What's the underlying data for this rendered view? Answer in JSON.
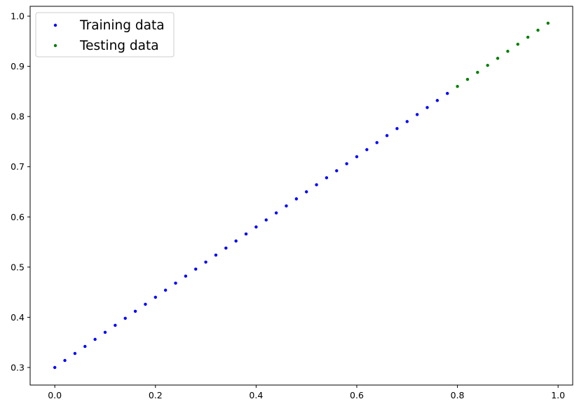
{
  "chart_data": {
    "type": "scatter",
    "title": "",
    "xlabel": "",
    "ylabel": "",
    "xlim": [
      -0.049,
      1.029
    ],
    "ylim": [
      0.265,
      1.0196
    ],
    "grid": false,
    "legend_position": "top-left",
    "xticks": [
      "0.0",
      "0.2",
      "0.4",
      "0.6",
      "0.8",
      "1.0"
    ],
    "yticks": [
      "0.3",
      "0.4",
      "0.5",
      "0.6",
      "0.7",
      "0.8",
      "0.9",
      "1.0"
    ],
    "series": [
      {
        "name": "Training data",
        "color": "#0000ff",
        "x": [
          0,
          0.02,
          0.04,
          0.06,
          0.08,
          0.1,
          0.12,
          0.14,
          0.16,
          0.18,
          0.2,
          0.22,
          0.24,
          0.26,
          0.28,
          0.3,
          0.32,
          0.34,
          0.36,
          0.38,
          0.4,
          0.42,
          0.44,
          0.46,
          0.48,
          0.5,
          0.52,
          0.54,
          0.56,
          0.58,
          0.6,
          0.62,
          0.64,
          0.66,
          0.68,
          0.7,
          0.72,
          0.74,
          0.76,
          0.78
        ],
        "y": [
          0.3,
          0.314,
          0.328,
          0.342,
          0.356,
          0.37,
          0.384,
          0.398,
          0.412,
          0.426,
          0.44,
          0.454,
          0.468,
          0.482,
          0.496,
          0.51,
          0.524,
          0.538,
          0.552,
          0.566,
          0.58,
          0.594,
          0.608,
          0.622,
          0.636,
          0.65,
          0.664,
          0.678,
          0.692,
          0.706,
          0.72,
          0.734,
          0.748,
          0.762,
          0.776,
          0.79,
          0.804,
          0.818,
          0.832,
          0.846
        ]
      },
      {
        "name": "Testing data",
        "color": "#008000",
        "x": [
          0.8,
          0.82,
          0.84,
          0.86,
          0.88,
          0.9,
          0.92,
          0.94,
          0.96,
          0.98
        ],
        "y": [
          0.86,
          0.874,
          0.888,
          0.902,
          0.916,
          0.93,
          0.944,
          0.958,
          0.972,
          0.986
        ]
      }
    ]
  }
}
